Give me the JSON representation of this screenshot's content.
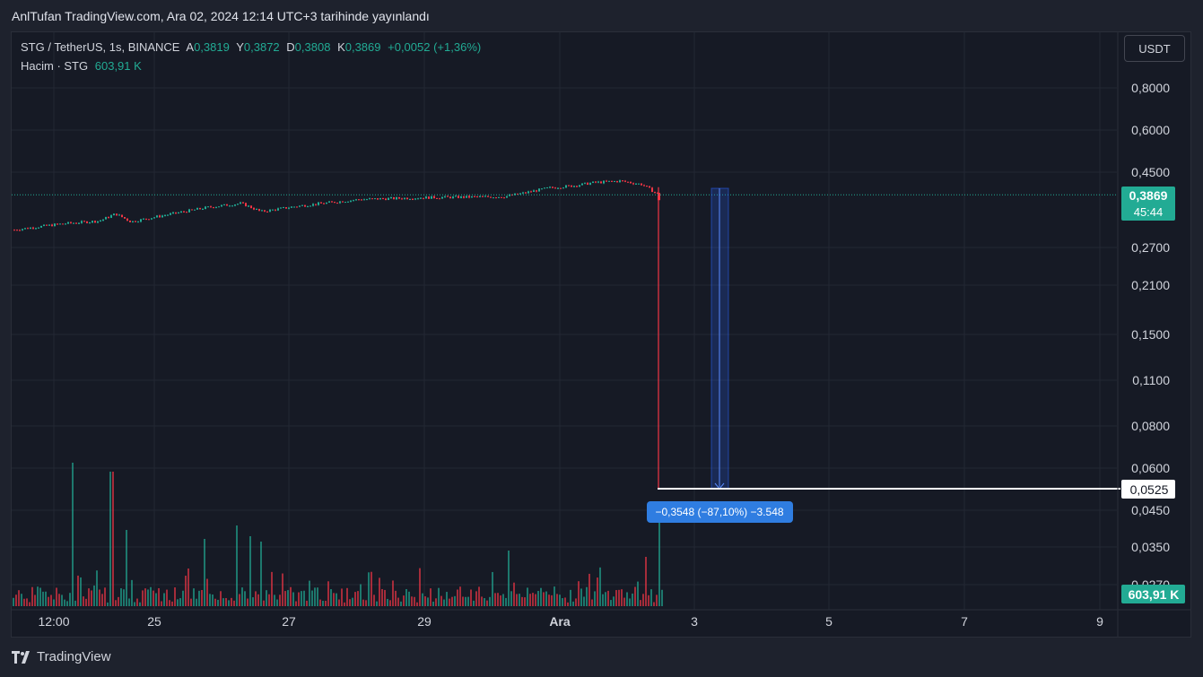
{
  "header": {
    "title": "AnlTufan TradingView.com, Ara 02, 2024 12:14 UTC+3 tarihinde yayınlandı"
  },
  "legend": {
    "symbol": "STG / TetherUS, 1s, BINANCE",
    "open_label": "A",
    "open_value": "0,3819",
    "high_label": "Y",
    "high_value": "0,3872",
    "low_label": "D",
    "low_value": "0,3808",
    "close_label": "K",
    "close_value": "0,3869",
    "change": "+0,0052 (+1,36%)",
    "volume_label": "Hacim · STG",
    "volume_value": "603,91 K"
  },
  "toolbar": {
    "currency": "USDT"
  },
  "price_axis": {
    "labels": [
      "0,8000",
      "0,6000",
      "0,4500",
      "0,2700",
      "0,2100",
      "0,1500",
      "0,1100",
      "0,0800",
      "0,0600",
      "0,0450",
      "0,0350",
      "0,0270"
    ],
    "current_price": "0,3869",
    "countdown": "45:44",
    "measure_price": "0,0525",
    "volume_badge": "603,91 K"
  },
  "time_axis": {
    "labels": [
      "12:00",
      "25",
      "27",
      "29",
      "Ara",
      "3",
      "5",
      "7",
      "9"
    ]
  },
  "measure_tool": {
    "label": "−0,3548 (−87,10%) −3.548"
  },
  "footer": {
    "brand": "TradingView",
    "logo_icon": "tradingview-logo-icon"
  },
  "colors": {
    "up": "#22ab94",
    "down": "#f23645",
    "background": "#161a25",
    "grid": "#232834",
    "measure": "#2962ff"
  },
  "chart_data": {
    "type": "candlestick",
    "series": [
      {
        "name": "STG / TetherUS"
      }
    ],
    "y_scale": "log",
    "ylim": [
      0.025,
      0.9
    ],
    "price_path": [
      {
        "t": "24 Kas 09:00",
        "price": 0.305
      },
      {
        "t": "24 Kas 14:00",
        "price": 0.318
      },
      {
        "t": "24 Kas 20:00",
        "price": 0.324
      },
      {
        "t": "25 Kas 00:00",
        "price": 0.34
      },
      {
        "t": "25 Kas 04:00",
        "price": 0.322
      },
      {
        "t": "25 Kas 10:00",
        "price": 0.33
      },
      {
        "t": "26 Kas 00:00",
        "price": 0.355
      },
      {
        "t": "26 Kas 12:00",
        "price": 0.365
      },
      {
        "t": "26 Kas 18:00",
        "price": 0.345
      },
      {
        "t": "27 Kas 12:00",
        "price": 0.36
      },
      {
        "t": "28 Kas 00:00",
        "price": 0.375
      },
      {
        "t": "28 Kas 12:00",
        "price": 0.38
      },
      {
        "t": "29 Kas 12:00",
        "price": 0.382
      },
      {
        "t": "30 Kas 00:00",
        "price": 0.39
      },
      {
        "t": "30 Kas 12:00",
        "price": 0.405
      },
      {
        "t": "1 Ara 06:00",
        "price": 0.42
      },
      {
        "t": "1 Ara 18:00",
        "price": 0.425
      },
      {
        "t": "2 Ara 06:00",
        "price": 0.41
      },
      {
        "t": "2 Ara 11:00",
        "price": 0.3869
      },
      {
        "t": "2 Ara 12:00",
        "price": 0.0525
      }
    ],
    "volume_spikes": [
      {
        "t": "24 Kas 18:00",
        "direction": "down"
      },
      {
        "t": "25 Kas 00:00",
        "direction": "up"
      }
    ],
    "measure": {
      "from": 0.4073,
      "to": 0.0525,
      "change": -0.3548,
      "percent": -87.1
    }
  }
}
